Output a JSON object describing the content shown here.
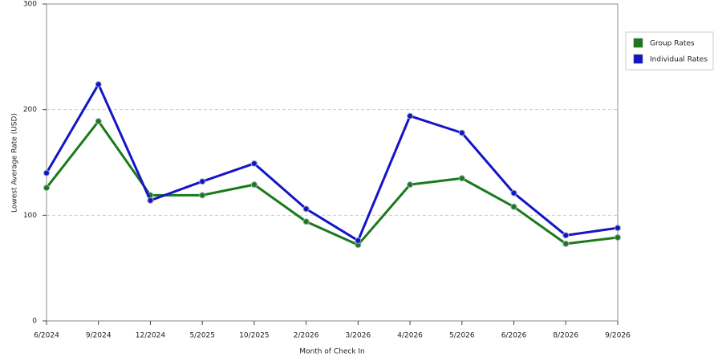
{
  "chart_data": {
    "type": "line",
    "x_label": "Month of Check In",
    "y_label": "Lowest Average Rate (USD)",
    "categories": [
      "6/2024",
      "9/2024",
      "12/2024",
      "5/2025",
      "10/2025",
      "2/2026",
      "3/2026",
      "4/2026",
      "5/2026",
      "6/2026",
      "8/2026",
      "9/2026"
    ],
    "series": [
      {
        "name": "Group Rates",
        "color": "#1a7a1a",
        "values": [
          126,
          189,
          119,
          119,
          129,
          94,
          72,
          129,
          135,
          108,
          73,
          79
        ]
      },
      {
        "name": "Individual Rates",
        "color": "#1414c8",
        "values": [
          140,
          224,
          114,
          132,
          149,
          106,
          76,
          194,
          178,
          121,
          81,
          88
        ]
      }
    ],
    "ylim": [
      0,
      300
    ],
    "yticks": [
      0,
      100,
      200,
      300
    ],
    "grid": true,
    "legend": "right"
  }
}
